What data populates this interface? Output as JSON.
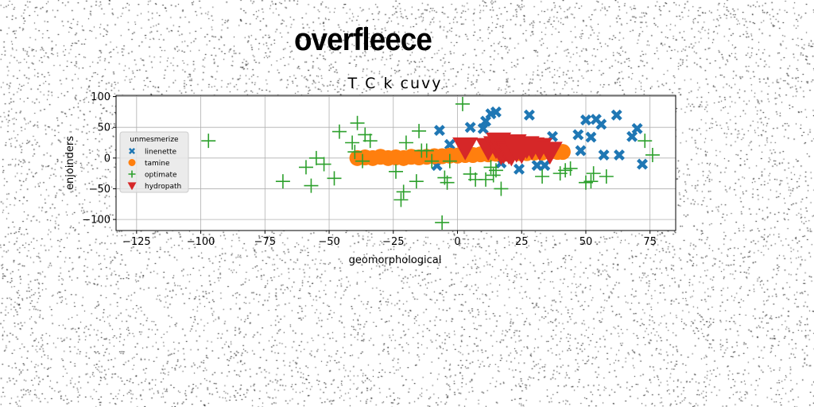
{
  "page": {
    "title": "overfleece"
  },
  "chart_data": {
    "type": "scatter",
    "title": "T C k cuvy",
    "xlabel": "geomorphological",
    "ylabel": "enjoinders",
    "xlim": [
      -133,
      85
    ],
    "ylim": [
      -118,
      102
    ],
    "xticks": [
      -125,
      -100,
      -75,
      -50,
      -25,
      0,
      25,
      50,
      75
    ],
    "yticks": [
      -100,
      -50,
      0,
      50,
      100
    ],
    "grid": true,
    "legend": {
      "title": "unmesmerize",
      "placement": "center-left"
    },
    "colors": {
      "linenette": "#1f77b4",
      "tamine": "#ff7f0e",
      "optimate": "#2ca02c",
      "hydropath": "#d62728"
    },
    "series": [
      {
        "name": "linenette",
        "marker": "x-filled",
        "points": [
          [
            -7,
            45
          ],
          [
            -3,
            22
          ],
          [
            -8,
            -12
          ],
          [
            5,
            50
          ],
          [
            11,
            60
          ],
          [
            13,
            72
          ],
          [
            15,
            75
          ],
          [
            10,
            48
          ],
          [
            20,
            25
          ],
          [
            17,
            -8
          ],
          [
            24,
            -18
          ],
          [
            28,
            70
          ],
          [
            31,
            -12
          ],
          [
            34,
            -12
          ],
          [
            37,
            35
          ],
          [
            47,
            38
          ],
          [
            48,
            12
          ],
          [
            50,
            62
          ],
          [
            52,
            34
          ],
          [
            54,
            63
          ],
          [
            56,
            55
          ],
          [
            57,
            5
          ],
          [
            62,
            70
          ],
          [
            63,
            5
          ],
          [
            68,
            35
          ],
          [
            70,
            48
          ],
          [
            72,
            -10
          ]
        ]
      },
      {
        "name": "tamine",
        "marker": "circle",
        "points": [
          [
            -39,
            0
          ],
          [
            -36,
            1
          ],
          [
            -33,
            0
          ],
          [
            -30,
            2
          ],
          [
            -27,
            0
          ],
          [
            -24,
            1
          ],
          [
            -21,
            0
          ],
          [
            -18,
            2
          ],
          [
            -15,
            1
          ],
          [
            -12,
            2
          ],
          [
            -9,
            3
          ],
          [
            -6,
            3
          ],
          [
            -3,
            4
          ],
          [
            0,
            4
          ],
          [
            3,
            5
          ],
          [
            6,
            5
          ],
          [
            9,
            6
          ],
          [
            12,
            6
          ],
          [
            15,
            7
          ],
          [
            18,
            7
          ],
          [
            21,
            8
          ],
          [
            24,
            8
          ],
          [
            27,
            8
          ],
          [
            30,
            9
          ],
          [
            33,
            9
          ],
          [
            36,
            10
          ],
          [
            39,
            10
          ],
          [
            41,
            10
          ]
        ]
      },
      {
        "name": "optimate",
        "marker": "plus",
        "points": [
          [
            -97,
            28
          ],
          [
            -68,
            -38
          ],
          [
            -59,
            -15
          ],
          [
            -57,
            -45
          ],
          [
            -55,
            0
          ],
          [
            -52,
            -10
          ],
          [
            -48,
            -33
          ],
          [
            -46,
            43
          ],
          [
            -41,
            25
          ],
          [
            -40,
            10
          ],
          [
            -39,
            57
          ],
          [
            -37,
            -5
          ],
          [
            -36,
            38
          ],
          [
            -34,
            28
          ],
          [
            -24,
            -22
          ],
          [
            -22,
            -68
          ],
          [
            -21,
            -55
          ],
          [
            -20,
            25
          ],
          [
            -16,
            -38
          ],
          [
            -15,
            44
          ],
          [
            -14,
            12
          ],
          [
            -12,
            12
          ],
          [
            -10,
            -5
          ],
          [
            -6,
            -105
          ],
          [
            -5,
            -32
          ],
          [
            -4,
            -40
          ],
          [
            -3,
            -5
          ],
          [
            2,
            88
          ],
          [
            5,
            -26
          ],
          [
            7,
            -35
          ],
          [
            11,
            -35
          ],
          [
            13,
            -15
          ],
          [
            14,
            -28
          ],
          [
            15,
            -20
          ],
          [
            17,
            -50
          ],
          [
            33,
            -30
          ],
          [
            40,
            -25
          ],
          [
            42,
            -20
          ],
          [
            44,
            -17
          ],
          [
            50,
            -40
          ],
          [
            52,
            -38
          ],
          [
            53,
            -25
          ],
          [
            58,
            -30
          ],
          [
            73,
            28
          ],
          [
            76,
            5
          ]
        ]
      },
      {
        "name": "hydropath",
        "marker": "triangle-down",
        "points": [
          [
            3,
            18
          ],
          [
            12,
            17
          ],
          [
            15,
            20
          ],
          [
            16,
            26
          ],
          [
            17,
            10
          ],
          [
            18,
            12
          ],
          [
            19,
            15
          ],
          [
            20,
            11
          ],
          [
            21,
            8
          ],
          [
            22,
            23
          ],
          [
            23,
            14
          ],
          [
            25,
            12
          ],
          [
            27,
            20
          ],
          [
            29,
            18
          ],
          [
            32,
            17
          ],
          [
            36,
            11
          ]
        ]
      }
    ]
  }
}
